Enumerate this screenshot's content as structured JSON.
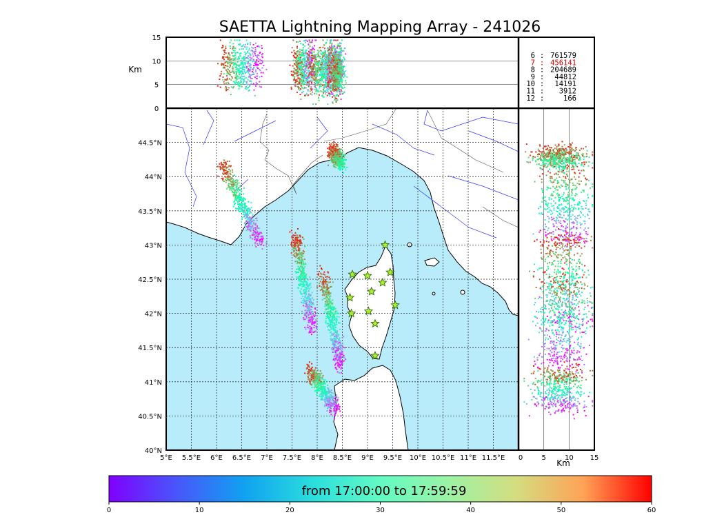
{
  "chart_data": {
    "type": "scatter",
    "title": "SAETTA Lightning Mapping Array - 241026",
    "time_range_label": "from 17:00:00 to 17:59:59",
    "height_unit": "Km",
    "map": {
      "lon_range": [
        5.0,
        12.0
      ],
      "lat_range": [
        40.0,
        45.0
      ],
      "lon_tick_labels": [
        "5°E",
        "5.5°E",
        "6°E",
        "6.5°E",
        "7°E",
        "7.5°E",
        "8°E",
        "8.5°E",
        "9°E",
        "9.5°E",
        "10°E",
        "10.5°E",
        "11°E",
        "11.5°E"
      ],
      "lon_tick_values": [
        5.0,
        5.5,
        6.0,
        6.5,
        7.0,
        7.5,
        8.0,
        8.5,
        9.0,
        9.5,
        10.0,
        10.5,
        11.0,
        11.5
      ],
      "lat_tick_labels": [
        "40°N",
        "40.5°N",
        "41°N",
        "41.5°N",
        "42°N",
        "42.5°N",
        "43°N",
        "43.5°N",
        "44°N",
        "44.5°N"
      ],
      "lat_tick_values": [
        40.0,
        40.5,
        41.0,
        41.5,
        42.0,
        42.5,
        43.0,
        43.5,
        44.0,
        44.5
      ],
      "grid": true,
      "sea_color": "#b8ecfa",
      "land_color": "#ffffff"
    },
    "top_panel": {
      "x_range": [
        5.0,
        12.0
      ],
      "y_range": [
        0,
        15
      ],
      "y_tick_labels": [
        "0",
        "5",
        "10",
        "15"
      ],
      "y_tick_values": [
        0,
        5,
        10,
        15
      ],
      "gridlines_at": [
        5,
        10
      ]
    },
    "right_panel": {
      "x_range": [
        0,
        15
      ],
      "x_tick_labels": [
        "0",
        "5",
        "10",
        "15"
      ],
      "x_tick_values": [
        0,
        5,
        10,
        15
      ]
    },
    "station_counts": [
      {
        "stations": "6",
        "count": "761579",
        "highlight": false
      },
      {
        "stations": "7",
        "count": "456141",
        "highlight": true
      },
      {
        "stations": "8",
        "count": "204689",
        "highlight": false
      },
      {
        "stations": "9",
        "count": "44812",
        "highlight": false
      },
      {
        "stations": "10",
        "count": "14191",
        "highlight": false
      },
      {
        "stations": "11",
        "count": "3912",
        "highlight": false
      },
      {
        "stations": "12",
        "count": "166",
        "highlight": false
      }
    ],
    "stations_lonlat": [
      [
        9.35,
        43.0
      ],
      [
        8.7,
        42.57
      ],
      [
        9.0,
        42.55
      ],
      [
        9.45,
        42.6
      ],
      [
        9.3,
        42.45
      ],
      [
        9.08,
        42.32
      ],
      [
        8.65,
        42.23
      ],
      [
        9.55,
        42.12
      ],
      [
        8.68,
        42.0
      ],
      [
        9.02,
        42.03
      ],
      [
        9.15,
        41.85
      ],
      [
        9.15,
        41.38
      ]
    ],
    "colorbar": {
      "cmap": "rainbow",
      "range": [
        0,
        60
      ],
      "tick_labels": [
        "0",
        "10",
        "20",
        "30",
        "40",
        "50",
        "60"
      ],
      "tick_values": [
        0,
        10,
        20,
        30,
        40,
        50,
        60
      ]
    },
    "storm_cells": [
      {
        "lon_start": 6.85,
        "lat_start": 43.05,
        "lon_end": 6.1,
        "lat_end": 44.2,
        "minutes_start": 0,
        "minutes_end": 58,
        "alt_center": 9.2
      },
      {
        "lon_start": 7.9,
        "lat_start": 41.8,
        "lon_end": 7.55,
        "lat_end": 43.15,
        "minutes_start": 0,
        "minutes_end": 58,
        "alt_center": 8.8
      },
      {
        "lon_start": 8.45,
        "lat_start": 41.25,
        "lon_end": 8.1,
        "lat_end": 42.6,
        "minutes_start": 0,
        "minutes_end": 58,
        "alt_center": 8.4
      },
      {
        "lon_start": 8.35,
        "lat_start": 40.6,
        "lon_end": 7.85,
        "lat_end": 41.2,
        "minutes_start": 0,
        "minutes_end": 58,
        "alt_center": 8.0
      },
      {
        "lon_start": 8.45,
        "lat_start": 44.2,
        "lon_end": 8.3,
        "lat_end": 44.4,
        "minutes_start": 30,
        "minutes_end": 58,
        "alt_center": 8.0
      }
    ]
  }
}
